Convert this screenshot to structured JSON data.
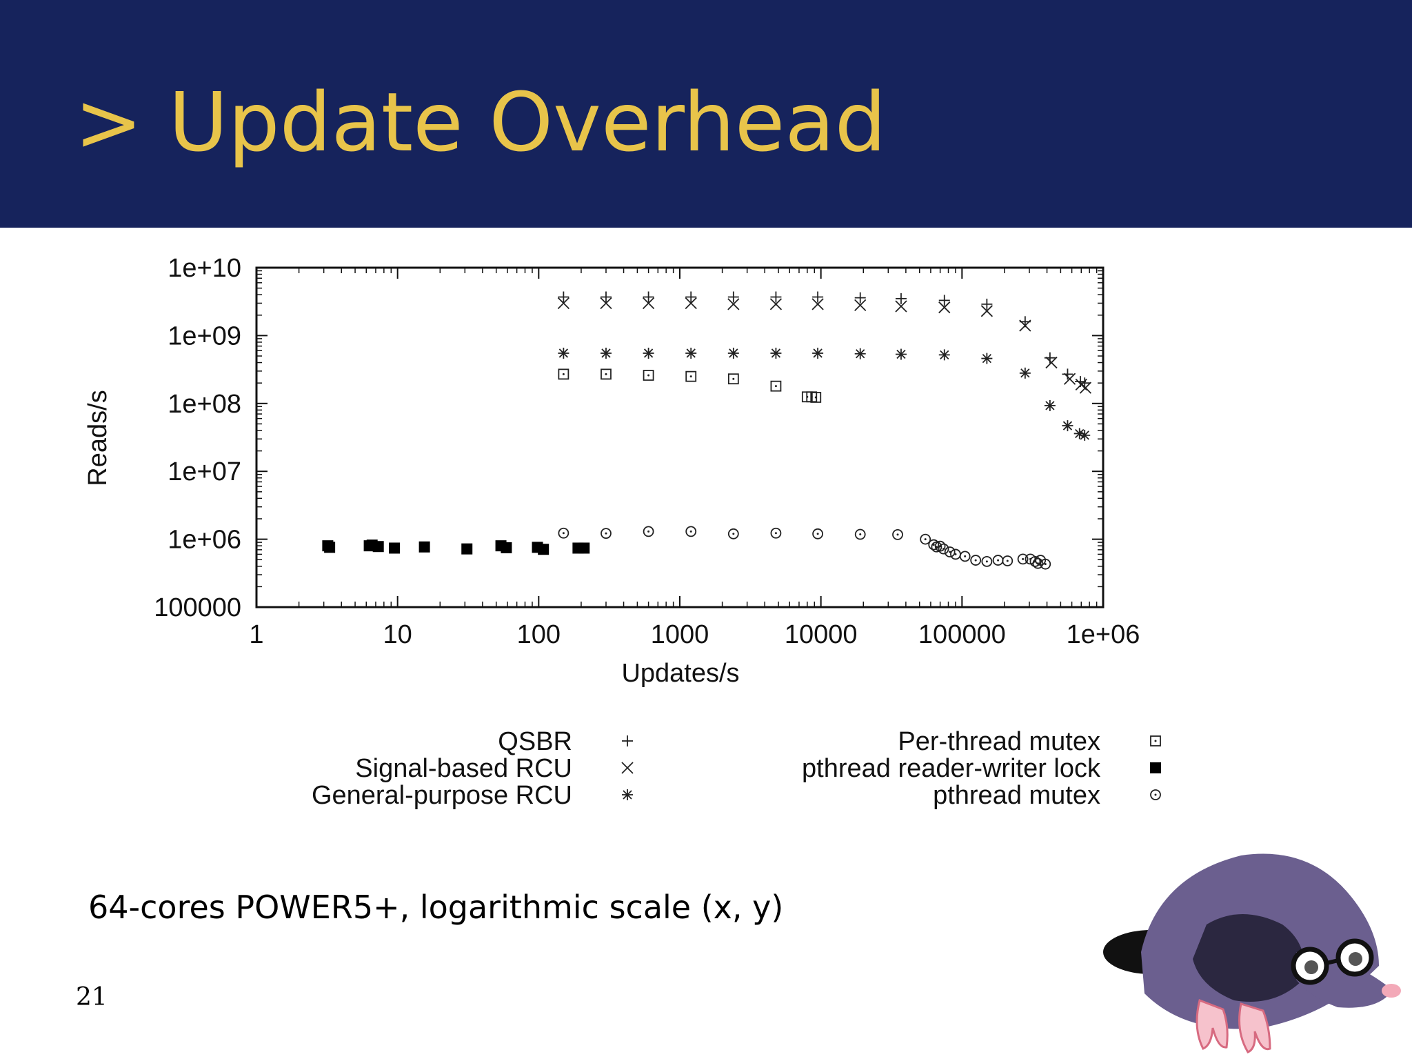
{
  "slide": {
    "title": "> Update Overhead",
    "caption": "64-cores POWER5+, logarithmic scale (x, y)",
    "page_number": "21",
    "colors": {
      "header_bg": "#16235c",
      "title": "#e8c44a"
    },
    "mascot_icon": "mole-with-glasses-icon"
  },
  "chart_data": {
    "type": "scatter",
    "title": "",
    "xlabel": "Updates/s",
    "ylabel": "Reads/s",
    "xscale": "log",
    "yscale": "log",
    "xlim": [
      1,
      1000000
    ],
    "ylim": [
      100000,
      10000000000
    ],
    "x_ticks": [
      1,
      10,
      100,
      1000,
      10000,
      100000,
      1000000
    ],
    "x_tick_labels": [
      "1",
      "10",
      "100",
      "1000",
      "10000",
      "100000",
      "1e+06"
    ],
    "y_ticks": [
      100000,
      1000000,
      10000000,
      100000000,
      1000000000,
      10000000000
    ],
    "y_tick_labels": [
      "100000",
      "1e+06",
      "1e+07",
      "1e+08",
      "1e+09",
      "1e+10"
    ],
    "grid": false,
    "legend_position": "bottom",
    "series": [
      {
        "name": "QSBR",
        "marker": "plus",
        "x": [
          150,
          300,
          600,
          1200,
          2400,
          4800,
          9500,
          19000,
          37000,
          75000,
          150000,
          280000,
          420000,
          560000,
          690000,
          740000
        ],
        "y": [
          3700000000,
          3700000000,
          3700000000,
          3700000000,
          3700000000,
          3700000000,
          3700000000,
          3600000000,
          3500000000,
          3300000000,
          2900000000,
          1600000000,
          470000000,
          270000000,
          210000000,
          200000000
        ]
      },
      {
        "name": "Signal-based RCU",
        "marker": "cross",
        "x": [
          150,
          300,
          600,
          1200,
          2400,
          4800,
          9500,
          19000,
          37000,
          75000,
          150000,
          280000,
          430000,
          580000,
          700000,
          750000
        ],
        "y": [
          3000000000,
          3000000000,
          3000000000,
          3000000000,
          2900000000,
          2900000000,
          2900000000,
          2800000000,
          2700000000,
          2600000000,
          2300000000,
          1400000000,
          400000000,
          230000000,
          190000000,
          170000000
        ]
      },
      {
        "name": "General-purpose RCU",
        "marker": "star",
        "x": [
          150,
          300,
          600,
          1200,
          2400,
          4800,
          9500,
          19000,
          37000,
          75000,
          150000,
          280000,
          420000,
          560000,
          680000,
          740000
        ],
        "y": [
          550000000,
          550000000,
          550000000,
          550000000,
          550000000,
          550000000,
          550000000,
          540000000,
          530000000,
          520000000,
          460000000,
          280000000,
          93000000,
          47000000,
          36000000,
          34000000
        ]
      },
      {
        "name": "Per-thread mutex",
        "marker": "square-dot",
        "x": [
          150,
          300,
          600,
          1200,
          2400,
          4800,
          8000,
          8600,
          9200
        ],
        "y": [
          270000000,
          270000000,
          260000000,
          250000000,
          230000000,
          180000000,
          125000000,
          125000000,
          123000000
        ]
      },
      {
        "name": "pthread reader-writer lock",
        "marker": "filled-square",
        "x": [
          3.2,
          3.3,
          6.3,
          6.6,
          7.3,
          9.5,
          15.5,
          31,
          54,
          59,
          98,
          108,
          190,
          210
        ],
        "y": [
          800000,
          760000,
          800000,
          820000,
          780000,
          740000,
          770000,
          720000,
          800000,
          750000,
          760000,
          710000,
          740000,
          740000
        ]
      },
      {
        "name": "pthread mutex",
        "marker": "circle-dot",
        "x": [
          150,
          300,
          600,
          1200,
          2400,
          4800,
          9500,
          19000,
          35000,
          55000,
          63000,
          66000,
          70000,
          74000,
          82000,
          90000,
          105000,
          125000,
          150000,
          180000,
          210000,
          270000,
          305000,
          330000,
          345000,
          360000,
          390000
        ],
        "y": [
          1230000,
          1220000,
          1300000,
          1300000,
          1200000,
          1230000,
          1200000,
          1180000,
          1170000,
          1000000,
          830000,
          770000,
          790000,
          720000,
          650000,
          600000,
          560000,
          490000,
          470000,
          490000,
          480000,
          510000,
          510000,
          470000,
          440000,
          490000,
          430000
        ]
      }
    ]
  }
}
